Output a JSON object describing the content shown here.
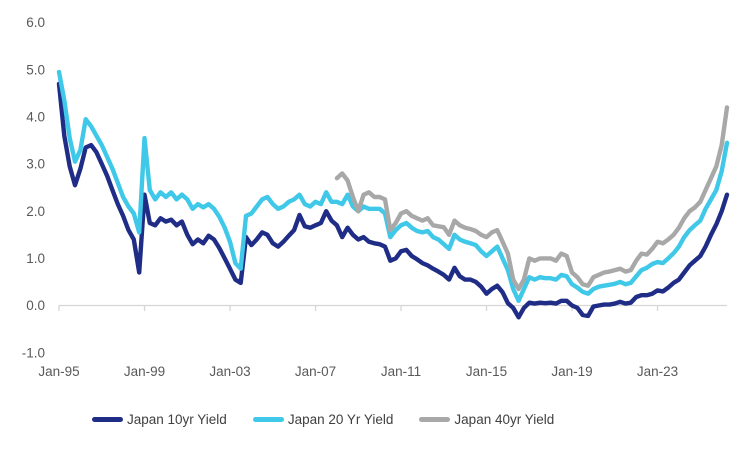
{
  "chart_data": {
    "type": "line",
    "grid": "none",
    "legend_position": "bottom",
    "axis_color": "#d6d6d6",
    "tick_label_color": "#595959",
    "legend_text_color": "#404040",
    "y_axis": {
      "min": -1.0,
      "max": 6.0,
      "ticks": [
        {
          "label": "6.0",
          "value": 6.0
        },
        {
          "label": "5.0",
          "value": 5.0
        },
        {
          "label": "4.0",
          "value": 4.0
        },
        {
          "label": "3.0",
          "value": 3.0
        },
        {
          "label": "2.0",
          "value": 2.0
        },
        {
          "label": "1.0",
          "value": 1.0
        },
        {
          "label": "0.0",
          "value": 0.0
        },
        {
          "label": "-1.0",
          "value": -1.0
        }
      ]
    },
    "x_axis": {
      "min": 1995.0,
      "max": 2026.25,
      "ticks": [
        {
          "label": "Jan-95",
          "year": 1995
        },
        {
          "label": "Jan-99",
          "year": 1999
        },
        {
          "label": "Jan-03",
          "year": 2003
        },
        {
          "label": "Jan-07",
          "year": 2007
        },
        {
          "label": "Jan-11",
          "year": 2011
        },
        {
          "label": "Jan-15",
          "year": 2015
        },
        {
          "label": "Jan-19",
          "year": 2019
        },
        {
          "label": "Jan-23",
          "year": 2023
        }
      ]
    },
    "series": [
      {
        "name": "Japan 10yr Yield",
        "color": "#1f2d86",
        "start": 1995.0,
        "step": 0.25,
        "values": [
          4.7,
          3.6,
          2.95,
          2.55,
          2.9,
          3.35,
          3.4,
          3.25,
          3.0,
          2.75,
          2.45,
          2.15,
          1.9,
          1.6,
          1.4,
          0.7,
          2.35,
          1.75,
          1.7,
          1.85,
          1.78,
          1.82,
          1.7,
          1.78,
          1.5,
          1.3,
          1.4,
          1.32,
          1.48,
          1.4,
          1.22,
          1.0,
          0.78,
          0.55,
          0.48,
          1.45,
          1.28,
          1.4,
          1.55,
          1.5,
          1.32,
          1.25,
          1.35,
          1.48,
          1.6,
          1.92,
          1.68,
          1.65,
          1.7,
          1.75,
          2.0,
          1.8,
          1.7,
          1.45,
          1.65,
          1.5,
          1.4,
          1.45,
          1.35,
          1.32,
          1.3,
          1.25,
          0.95,
          1.0,
          1.15,
          1.18,
          1.05,
          0.98,
          0.9,
          0.85,
          0.78,
          0.72,
          0.65,
          0.55,
          0.8,
          0.62,
          0.55,
          0.55,
          0.5,
          0.4,
          0.25,
          0.35,
          0.42,
          0.28,
          0.05,
          -0.05,
          -0.25,
          -0.05,
          0.06,
          0.04,
          0.06,
          0.05,
          0.06,
          0.04,
          0.1,
          0.1,
          0.0,
          -0.05,
          -0.2,
          -0.22,
          -0.02,
          0.0,
          0.02,
          0.02,
          0.04,
          0.08,
          0.04,
          0.06,
          0.18,
          0.22,
          0.22,
          0.25,
          0.32,
          0.3,
          0.38,
          0.48,
          0.55,
          0.7,
          0.85,
          0.95,
          1.05,
          1.25,
          1.5,
          1.72,
          2.0,
          2.35
        ]
      },
      {
        "name": "Japan 20 Yr Yield",
        "color": "#3fc8e8",
        "start": 1995.0,
        "step": 0.25,
        "values": [
          4.95,
          4.35,
          3.55,
          3.05,
          3.3,
          3.95,
          3.8,
          3.6,
          3.4,
          3.15,
          2.9,
          2.6,
          2.3,
          2.1,
          1.95,
          1.55,
          3.55,
          2.45,
          2.25,
          2.4,
          2.3,
          2.4,
          2.25,
          2.35,
          2.25,
          2.05,
          2.15,
          2.08,
          2.15,
          2.05,
          1.88,
          1.65,
          1.35,
          0.9,
          0.78,
          1.9,
          1.95,
          2.1,
          2.25,
          2.3,
          2.15,
          2.05,
          2.1,
          2.2,
          2.25,
          2.35,
          2.15,
          2.1,
          2.2,
          2.15,
          2.4,
          2.2,
          2.2,
          2.15,
          2.35,
          2.1,
          2.0,
          2.1,
          2.05,
          2.05,
          2.05,
          1.95,
          1.45,
          1.6,
          1.7,
          1.75,
          1.65,
          1.58,
          1.55,
          1.58,
          1.45,
          1.4,
          1.3,
          1.2,
          1.5,
          1.4,
          1.35,
          1.32,
          1.28,
          1.15,
          1.05,
          1.15,
          1.25,
          1.0,
          0.75,
          0.35,
          0.1,
          0.35,
          0.6,
          0.55,
          0.6,
          0.58,
          0.58,
          0.55,
          0.65,
          0.62,
          0.45,
          0.38,
          0.29,
          0.25,
          0.35,
          0.4,
          0.42,
          0.44,
          0.46,
          0.5,
          0.45,
          0.48,
          0.62,
          0.75,
          0.8,
          0.88,
          0.92,
          0.9,
          1.0,
          1.11,
          1.25,
          1.45,
          1.6,
          1.7,
          1.8,
          2.05,
          2.25,
          2.45,
          2.85,
          3.45
        ]
      },
      {
        "name": "Japan 40yr Yield",
        "color": "#a8a8a8",
        "start": 2008.0,
        "step": 0.25,
        "values": [
          2.7,
          2.8,
          2.65,
          2.3,
          2.0,
          2.35,
          2.4,
          2.3,
          2.3,
          2.25,
          1.6,
          1.75,
          1.95,
          2.0,
          1.9,
          1.85,
          1.8,
          1.85,
          1.7,
          1.68,
          1.66,
          1.5,
          1.8,
          1.7,
          1.65,
          1.62,
          1.58,
          1.5,
          1.45,
          1.55,
          1.6,
          1.35,
          1.1,
          0.55,
          0.35,
          0.55,
          1.0,
          0.95,
          1.0,
          1.0,
          1.0,
          0.95,
          1.1,
          1.05,
          0.7,
          0.6,
          0.45,
          0.42,
          0.6,
          0.65,
          0.7,
          0.72,
          0.75,
          0.78,
          0.72,
          0.75,
          0.95,
          1.1,
          1.08,
          1.2,
          1.35,
          1.32,
          1.4,
          1.5,
          1.65,
          1.85,
          2.0,
          2.08,
          2.2,
          2.45,
          2.7,
          2.95,
          3.4,
          4.2
        ]
      }
    ]
  }
}
